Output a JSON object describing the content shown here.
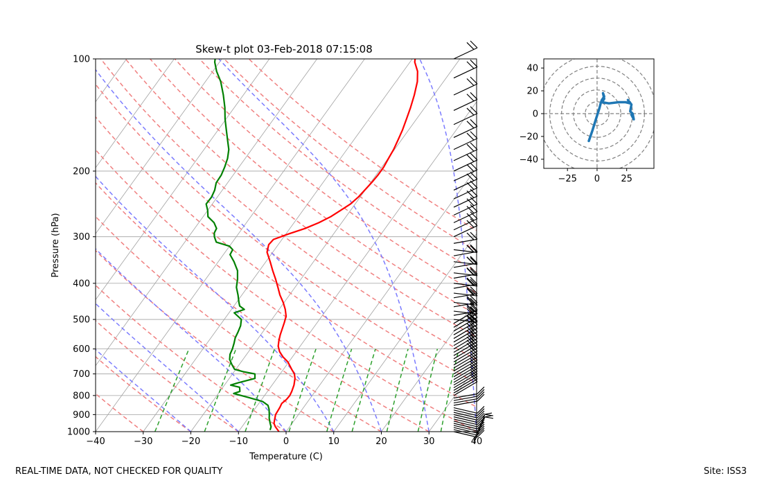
{
  "footer": {
    "qc_note": "REAL-TIME DATA, NOT CHECKED FOR QUALITY",
    "site": "Site: ISS3"
  },
  "colors": {
    "temperature": "#ff0000",
    "dewpoint": "#008000",
    "dry_adiabat": "#f08080",
    "moist_adiabat": "#7b7bff",
    "mixing_ratio": "#2ca02c",
    "isotherm": "#a0a0a0",
    "hodograph": "#1f77b4",
    "barb": "#000000"
  },
  "chart_data": [
    {
      "type": "line",
      "subtype": "skew-t log-p",
      "title": "Skew-t plot 03-Feb-2018 07:15:08",
      "xlabel": "Temperature (C)",
      "ylabel": "Pressure (hPa)",
      "xlim": [
        -40,
        40
      ],
      "ylim": [
        1000,
        100
      ],
      "yscale": "log",
      "grid": true,
      "xticks": [
        -40,
        -30,
        -20,
        -10,
        0,
        10,
        20,
        30,
        40
      ],
      "yticks": [
        1000,
        900,
        800,
        700,
        600,
        500,
        400,
        300,
        200,
        100
      ],
      "series": [
        {
          "role": "temperature",
          "points": [
            [
              1000,
              -1.5
            ],
            [
              970,
              -3
            ],
            [
              950,
              -3.8
            ],
            [
              900,
              -4.8
            ],
            [
              860,
              -5
            ],
            [
              840,
              -5.2
            ],
            [
              820,
              -4.8
            ],
            [
              800,
              -4.7
            ],
            [
              780,
              -4.9
            ],
            [
              750,
              -5.4
            ],
            [
              720,
              -6.2
            ],
            [
              700,
              -7
            ],
            [
              680,
              -8.3
            ],
            [
              650,
              -10.2
            ],
            [
              630,
              -12
            ],
            [
              610,
              -13.5
            ],
            [
              590,
              -14.6
            ],
            [
              570,
              -15.3
            ],
            [
              550,
              -15.9
            ],
            [
              530,
              -16.4
            ],
            [
              510,
              -16.9
            ],
            [
              490,
              -17.5
            ],
            [
              470,
              -18.7
            ],
            [
              450,
              -20.2
            ],
            [
              430,
              -22
            ],
            [
              410,
              -23.6
            ],
            [
              390,
              -25.3
            ],
            [
              370,
              -27.2
            ],
            [
              350,
              -29.1
            ],
            [
              330,
              -31.2
            ],
            [
              315,
              -32
            ],
            [
              305,
              -31.8
            ],
            [
              295,
              -29.5
            ],
            [
              285,
              -26.8
            ],
            [
              275,
              -24.8
            ],
            [
              265,
              -23.2
            ],
            [
              255,
              -22.1
            ],
            [
              245,
              -21
            ],
            [
              235,
              -20.4
            ],
            [
              225,
              -20.1
            ],
            [
              215,
              -19.8
            ],
            [
              205,
              -19.6
            ],
            [
              195,
              -19.6
            ],
            [
              185,
              -19.9
            ],
            [
              175,
              -20.2
            ],
            [
              165,
              -20.7
            ],
            [
              155,
              -21.3
            ],
            [
              145,
              -22.1
            ],
            [
              135,
              -23
            ],
            [
              125,
              -24.1
            ],
            [
              115,
              -25.5
            ],
            [
              108,
              -27
            ],
            [
              102,
              -29
            ],
            [
              100,
              -29.4
            ]
          ]
        },
        {
          "role": "dewpoint",
          "points": [
            [
              990,
              -3.6
            ],
            [
              970,
              -3.9
            ],
            [
              950,
              -4.6
            ],
            [
              920,
              -5.6
            ],
            [
              900,
              -6.1
            ],
            [
              870,
              -7
            ],
            [
              850,
              -7.8
            ],
            [
              830,
              -9.5
            ],
            [
              810,
              -13
            ],
            [
              790,
              -16.8
            ],
            [
              780,
              -15.8
            ],
            [
              760,
              -16.5
            ],
            [
              750,
              -18.7
            ],
            [
              740,
              -17.5
            ],
            [
              720,
              -14.6
            ],
            [
              700,
              -15.3
            ],
            [
              690,
              -18.2
            ],
            [
              680,
              -20.3
            ],
            [
              660,
              -21.6
            ],
            [
              640,
              -22.8
            ],
            [
              620,
              -23.5
            ],
            [
              600,
              -23.8
            ],
            [
              580,
              -24.3
            ],
            [
              560,
              -24.9
            ],
            [
              540,
              -25.2
            ],
            [
              520,
              -25.6
            ],
            [
              500,
              -26.4
            ],
            [
              480,
              -28.9
            ],
            [
              470,
              -27.3
            ],
            [
              460,
              -28.8
            ],
            [
              450,
              -29.5
            ],
            [
              430,
              -30.8
            ],
            [
              410,
              -32.3
            ],
            [
              390,
              -33.3
            ],
            [
              370,
              -34.6
            ],
            [
              350,
              -36.7
            ],
            [
              335,
              -38.6
            ],
            [
              325,
              -38.8
            ],
            [
              318,
              -40
            ],
            [
              310,
              -43.4
            ],
            [
              300,
              -44.6
            ],
            [
              293,
              -45.2
            ],
            [
              285,
              -45.4
            ],
            [
              275,
              -46.8
            ],
            [
              265,
              -49
            ],
            [
              255,
              -50
            ],
            [
              245,
              -51.3
            ],
            [
              235,
              -51.2
            ],
            [
              225,
              -51.6
            ],
            [
              215,
              -52.4
            ],
            [
              205,
              -52.5
            ],
            [
              195,
              -53
            ],
            [
              185,
              -53.7
            ],
            [
              175,
              -54.8
            ],
            [
              165,
              -56.5
            ],
            [
              155,
              -58.3
            ],
            [
              145,
              -60.2
            ],
            [
              135,
              -62
            ],
            [
              125,
              -64.2
            ],
            [
              115,
              -66.8
            ],
            [
              108,
              -69.2
            ],
            [
              102,
              -71
            ],
            [
              100,
              -71.4
            ]
          ]
        }
      ]
    },
    {
      "type": "line",
      "subtype": "hodograph",
      "xlim": [
        -45,
        48
      ],
      "ylim": [
        -48,
        48
      ],
      "xticks": [
        -25,
        0,
        25
      ],
      "yticks": [
        -40,
        -20,
        0,
        20,
        40
      ],
      "rings": [
        10,
        20,
        30,
        40,
        50
      ],
      "points": [
        [
          -7,
          -24
        ],
        [
          -4,
          -15
        ],
        [
          -1,
          -5
        ],
        [
          2,
          5
        ],
        [
          3,
          9
        ],
        [
          4,
          12
        ],
        [
          6,
          15
        ],
        [
          5,
          18
        ],
        [
          6,
          13
        ],
        [
          4,
          10
        ],
        [
          10,
          9
        ],
        [
          18,
          10
        ],
        [
          24,
          10
        ],
        [
          28,
          9
        ],
        [
          26,
          12
        ],
        [
          29,
          8
        ],
        [
          28,
          2
        ],
        [
          30,
          0
        ],
        [
          31,
          -5
        ],
        [
          30,
          -3
        ],
        [
          29,
          -1
        ]
      ]
    }
  ]
}
